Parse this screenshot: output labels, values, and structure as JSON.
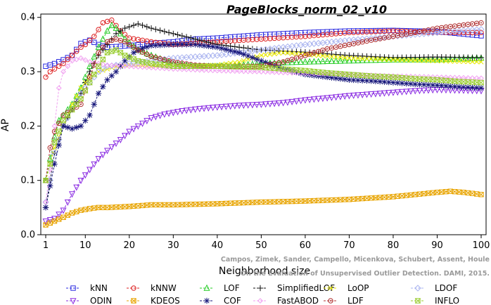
{
  "chart_data": {
    "type": "line",
    "title": "PageBlocks_norm_02_v10",
    "xlabel": "Neighborhood size",
    "ylabel": "AP",
    "xlim": [
      1,
      100
    ],
    "ylim": [
      0,
      0.4
    ],
    "xticks": [
      "1",
      "10",
      "20",
      "30",
      "40",
      "50",
      "60",
      "70",
      "80",
      "90",
      "100"
    ],
    "xtick_values": [
      1,
      10,
      20,
      30,
      40,
      50,
      60,
      70,
      80,
      90,
      100
    ],
    "yticks": [
      "0.0",
      "0.1",
      "0.2",
      "0.3",
      "0.4"
    ],
    "ytick_values": [
      0,
      0.1,
      0.2,
      0.3,
      0.4
    ],
    "legend_position": "bottom",
    "credit_lines": [
      "Campos, Zimek, Sander, Campello, Micenkova, Schubert, Assent, Houle",
      "On the Evaluation of Unsupervised Outlier Detection. DAMI, 2015."
    ],
    "series": [
      {
        "name": "kNN",
        "marker": "square",
        "color": "#2a2ae0",
        "points": [
          [
            1,
            0.31
          ],
          [
            3,
            0.315
          ],
          [
            5,
            0.322
          ],
          [
            7,
            0.33
          ],
          [
            9,
            0.352
          ],
          [
            11,
            0.358
          ],
          [
            13,
            0.35
          ],
          [
            15,
            0.345
          ],
          [
            20,
            0.348
          ],
          [
            25,
            0.352
          ],
          [
            30,
            0.355
          ],
          [
            35,
            0.36
          ],
          [
            40,
            0.362
          ],
          [
            50,
            0.368
          ],
          [
            60,
            0.372
          ],
          [
            70,
            0.375
          ],
          [
            80,
            0.376
          ],
          [
            90,
            0.374
          ],
          [
            95,
            0.37
          ],
          [
            100,
            0.366
          ]
        ]
      },
      {
        "name": "kNNW",
        "marker": "circle",
        "color": "#dd2222",
        "points": [
          [
            1,
            0.29
          ],
          [
            2,
            0.3
          ],
          [
            3,
            0.305
          ],
          [
            5,
            0.315
          ],
          [
            7,
            0.33
          ],
          [
            9,
            0.345
          ],
          [
            10,
            0.35
          ],
          [
            12,
            0.365
          ],
          [
            14,
            0.39
          ],
          [
            16,
            0.395
          ],
          [
            18,
            0.375
          ],
          [
            20,
            0.362
          ],
          [
            25,
            0.355
          ],
          [
            30,
            0.35
          ],
          [
            40,
            0.355
          ],
          [
            50,
            0.36
          ],
          [
            60,
            0.365
          ],
          [
            70,
            0.372
          ],
          [
            80,
            0.375
          ],
          [
            90,
            0.372
          ],
          [
            100,
            0.372
          ]
        ]
      },
      {
        "name": "LOF",
        "marker": "triangle",
        "color": "#22cc22",
        "points": [
          [
            1,
            0.1
          ],
          [
            2,
            0.14
          ],
          [
            3,
            0.18
          ],
          [
            4,
            0.21
          ],
          [
            5,
            0.22
          ],
          [
            7,
            0.24
          ],
          [
            9,
            0.27
          ],
          [
            11,
            0.31
          ],
          [
            13,
            0.345
          ],
          [
            15,
            0.375
          ],
          [
            16,
            0.385
          ],
          [
            17,
            0.38
          ],
          [
            19,
            0.36
          ],
          [
            22,
            0.34
          ],
          [
            25,
            0.33
          ],
          [
            30,
            0.315
          ],
          [
            35,
            0.31
          ],
          [
            40,
            0.31
          ],
          [
            45,
            0.312
          ],
          [
            50,
            0.315
          ],
          [
            60,
            0.318
          ],
          [
            70,
            0.32
          ],
          [
            80,
            0.322
          ],
          [
            90,
            0.322
          ],
          [
            100,
            0.325
          ]
        ]
      },
      {
        "name": "SimplifiedLOF",
        "marker": "plus",
        "color": "#111111",
        "points": [
          [
            1,
            0.05
          ],
          [
            2,
            0.1
          ],
          [
            3,
            0.15
          ],
          [
            5,
            0.2
          ],
          [
            7,
            0.23
          ],
          [
            9,
            0.26
          ],
          [
            11,
            0.3
          ],
          [
            13,
            0.33
          ],
          [
            15,
            0.35
          ],
          [
            17,
            0.37
          ],
          [
            19,
            0.38
          ],
          [
            22,
            0.388
          ],
          [
            25,
            0.38
          ],
          [
            30,
            0.37
          ],
          [
            35,
            0.36
          ],
          [
            40,
            0.35
          ],
          [
            45,
            0.345
          ],
          [
            50,
            0.34
          ],
          [
            60,
            0.336
          ],
          [
            70,
            0.33
          ],
          [
            80,
            0.326
          ],
          [
            90,
            0.327
          ],
          [
            100,
            0.326
          ]
        ]
      },
      {
        "name": "LoOP",
        "marker": "x",
        "color": "#e8e800",
        "points": [
          [
            1,
            0.1
          ],
          [
            2,
            0.13
          ],
          [
            3,
            0.16
          ],
          [
            5,
            0.2
          ],
          [
            7,
            0.24
          ],
          [
            9,
            0.27
          ],
          [
            11,
            0.29
          ],
          [
            13,
            0.3
          ],
          [
            15,
            0.305
          ],
          [
            17,
            0.31
          ],
          [
            20,
            0.313
          ],
          [
            25,
            0.31
          ],
          [
            30,
            0.31
          ],
          [
            40,
            0.312
          ],
          [
            45,
            0.318
          ],
          [
            50,
            0.33
          ],
          [
            55,
            0.335
          ],
          [
            60,
            0.332
          ],
          [
            70,
            0.325
          ],
          [
            80,
            0.322
          ],
          [
            90,
            0.32
          ],
          [
            100,
            0.318
          ]
        ]
      },
      {
        "name": "LDOF",
        "marker": "diamond",
        "color": "#aab4f0",
        "points": [
          [
            1,
            0.06
          ],
          [
            2,
            0.1
          ],
          [
            3,
            0.15
          ],
          [
            5,
            0.2
          ],
          [
            7,
            0.23
          ],
          [
            9,
            0.26
          ],
          [
            11,
            0.28
          ],
          [
            13,
            0.3
          ],
          [
            15,
            0.31
          ],
          [
            20,
            0.315
          ],
          [
            25,
            0.32
          ],
          [
            30,
            0.325
          ],
          [
            40,
            0.33
          ],
          [
            50,
            0.34
          ],
          [
            60,
            0.35
          ],
          [
            70,
            0.358
          ],
          [
            80,
            0.365
          ],
          [
            90,
            0.372
          ],
          [
            100,
            0.378
          ]
        ]
      },
      {
        "name": "ODIN",
        "marker": "triangle-down",
        "color": "#8a2be2",
        "points": [
          [
            1,
            0.025
          ],
          [
            3,
            0.03
          ],
          [
            5,
            0.045
          ],
          [
            7,
            0.075
          ],
          [
            9,
            0.1
          ],
          [
            11,
            0.12
          ],
          [
            13,
            0.14
          ],
          [
            15,
            0.155
          ],
          [
            18,
            0.175
          ],
          [
            20,
            0.19
          ],
          [
            23,
            0.205
          ],
          [
            25,
            0.215
          ],
          [
            28,
            0.222
          ],
          [
            32,
            0.228
          ],
          [
            36,
            0.232
          ],
          [
            40,
            0.235
          ],
          [
            45,
            0.238
          ],
          [
            50,
            0.24
          ],
          [
            55,
            0.243
          ],
          [
            60,
            0.248
          ],
          [
            65,
            0.252
          ],
          [
            70,
            0.256
          ],
          [
            75,
            0.259
          ],
          [
            80,
            0.262
          ],
          [
            85,
            0.265
          ],
          [
            90,
            0.267
          ],
          [
            95,
            0.266
          ],
          [
            100,
            0.265
          ]
        ]
      },
      {
        "name": "KDEOS",
        "marker": "square-x",
        "color": "#e8a400",
        "points": [
          [
            1,
            0.018
          ],
          [
            3,
            0.025
          ],
          [
            5,
            0.032
          ],
          [
            7,
            0.04
          ],
          [
            9,
            0.045
          ],
          [
            11,
            0.048
          ],
          [
            13,
            0.05
          ],
          [
            15,
            0.05
          ],
          [
            20,
            0.052
          ],
          [
            25,
            0.055
          ],
          [
            30,
            0.055
          ],
          [
            40,
            0.057
          ],
          [
            50,
            0.06
          ],
          [
            60,
            0.062
          ],
          [
            70,
            0.065
          ],
          [
            80,
            0.07
          ],
          [
            85,
            0.074
          ],
          [
            90,
            0.078
          ],
          [
            93,
            0.08
          ],
          [
            96,
            0.078
          ],
          [
            100,
            0.074
          ]
        ]
      },
      {
        "name": "COF",
        "marker": "asterisk",
        "color": "#16167a",
        "points": [
          [
            1,
            0.05
          ],
          [
            2,
            0.09
          ],
          [
            3,
            0.13
          ],
          [
            5,
            0.2
          ],
          [
            7,
            0.195
          ],
          [
            9,
            0.2
          ],
          [
            11,
            0.22
          ],
          [
            13,
            0.26
          ],
          [
            15,
            0.285
          ],
          [
            17,
            0.3
          ],
          [
            19,
            0.32
          ],
          [
            21,
            0.335
          ],
          [
            23,
            0.343
          ],
          [
            25,
            0.348
          ],
          [
            30,
            0.35
          ],
          [
            35,
            0.35
          ],
          [
            40,
            0.345
          ],
          [
            45,
            0.335
          ],
          [
            50,
            0.32
          ],
          [
            55,
            0.305
          ],
          [
            60,
            0.295
          ],
          [
            65,
            0.29
          ],
          [
            70,
            0.285
          ],
          [
            75,
            0.283
          ],
          [
            80,
            0.28
          ],
          [
            85,
            0.277
          ],
          [
            90,
            0.275
          ],
          [
            95,
            0.272
          ],
          [
            100,
            0.27
          ]
        ]
      },
      {
        "name": "FastABOD",
        "marker": "diamond-small",
        "color": "#f0a0f0",
        "points": [
          [
            1,
            0.06
          ],
          [
            2,
            0.12
          ],
          [
            3,
            0.2
          ],
          [
            4,
            0.27
          ],
          [
            5,
            0.3
          ],
          [
            7,
            0.32
          ],
          [
            9,
            0.325
          ],
          [
            11,
            0.318
          ],
          [
            13,
            0.315
          ],
          [
            15,
            0.312
          ],
          [
            20,
            0.31
          ],
          [
            30,
            0.305
          ],
          [
            40,
            0.302
          ],
          [
            50,
            0.3
          ],
          [
            60,
            0.297
          ],
          [
            70,
            0.295
          ],
          [
            80,
            0.292
          ],
          [
            90,
            0.29
          ],
          [
            100,
            0.288
          ]
        ]
      },
      {
        "name": "LDF",
        "marker": "circle-dot",
        "color": "#b03030",
        "points": [
          [
            1,
            0.1
          ],
          [
            2,
            0.16
          ],
          [
            3,
            0.19
          ],
          [
            5,
            0.22
          ],
          [
            7,
            0.23
          ],
          [
            9,
            0.24
          ],
          [
            11,
            0.29
          ],
          [
            13,
            0.335
          ],
          [
            15,
            0.355
          ],
          [
            17,
            0.36
          ],
          [
            19,
            0.355
          ],
          [
            22,
            0.34
          ],
          [
            25,
            0.328
          ],
          [
            30,
            0.318
          ],
          [
            35,
            0.312
          ],
          [
            40,
            0.31
          ],
          [
            45,
            0.31
          ],
          [
            50,
            0.31
          ],
          [
            55,
            0.318
          ],
          [
            60,
            0.33
          ],
          [
            65,
            0.342
          ],
          [
            70,
            0.35
          ],
          [
            75,
            0.358
          ],
          [
            80,
            0.365
          ],
          [
            85,
            0.372
          ],
          [
            90,
            0.38
          ],
          [
            95,
            0.385
          ],
          [
            100,
            0.39
          ]
        ]
      },
      {
        "name": "INFLO",
        "marker": "hourglass",
        "color": "#9acd32",
        "points": [
          [
            1,
            0.1
          ],
          [
            2,
            0.13
          ],
          [
            3,
            0.17
          ],
          [
            5,
            0.21
          ],
          [
            7,
            0.23
          ],
          [
            9,
            0.25
          ],
          [
            11,
            0.28
          ],
          [
            13,
            0.31
          ],
          [
            15,
            0.335
          ],
          [
            17,
            0.34
          ],
          [
            19,
            0.33
          ],
          [
            22,
            0.32
          ],
          [
            25,
            0.315
          ],
          [
            30,
            0.31
          ],
          [
            40,
            0.31
          ],
          [
            50,
            0.308
          ],
          [
            55,
            0.305
          ],
          [
            60,
            0.302
          ],
          [
            65,
            0.298
          ],
          [
            70,
            0.295
          ],
          [
            75,
            0.292
          ],
          [
            80,
            0.29
          ],
          [
            85,
            0.287
          ],
          [
            90,
            0.285
          ],
          [
            95,
            0.282
          ],
          [
            100,
            0.28
          ]
        ]
      }
    ]
  }
}
